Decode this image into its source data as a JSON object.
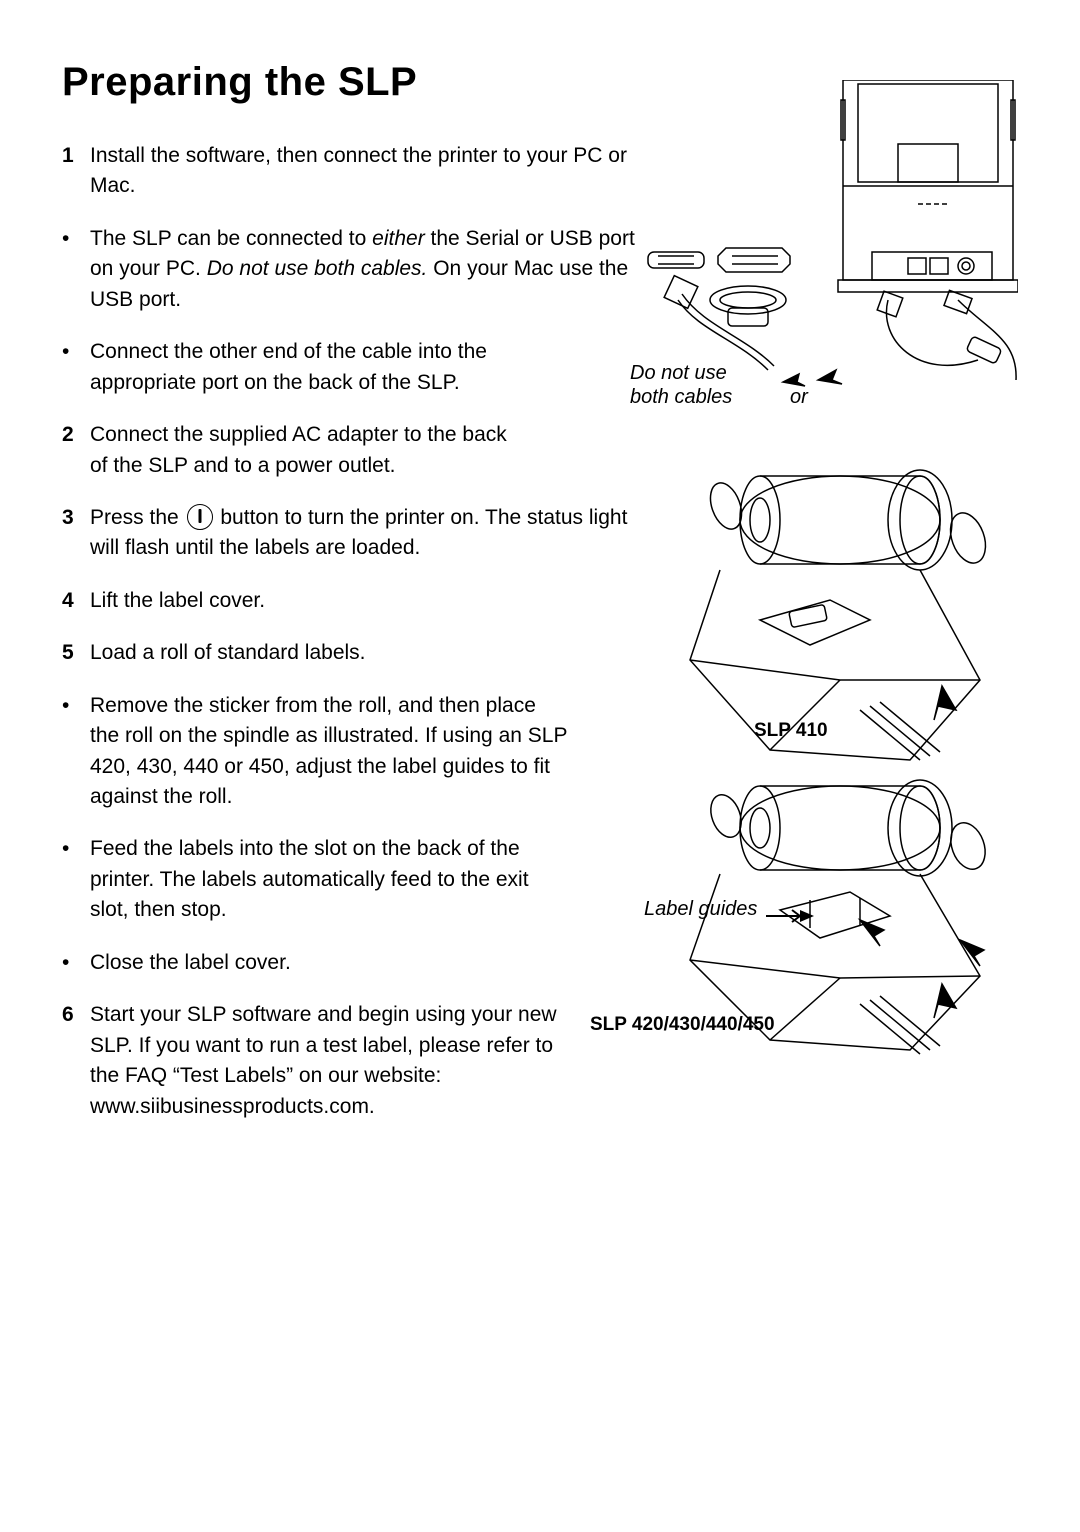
{
  "title": "Preparing the SLP",
  "items": [
    {
      "marker": "1",
      "type": "num",
      "html": "Install the software, then connect the printer to your PC or Mac."
    },
    {
      "marker": "•",
      "type": "bul",
      "html": "The SLP can be connected to <span class='em'>either</span> the Serial or USB port on your PC. <span class='em'>Do not use both cables.</span> On your Mac use the USB port."
    },
    {
      "marker": "•",
      "type": "bul",
      "html": "Connect the other end of the cable into the appropriate port on the back of the SLP.",
      "narrow": true
    },
    {
      "marker": "2",
      "type": "num",
      "html": "Connect the supplied AC adapter to the back of the SLP and to a power outlet.",
      "narrow": true
    },
    {
      "marker": "3",
      "type": "num",
      "html": "Press the <span class='power-icon' data-name='power-icon' data-interactable='false'></span> button to turn the printer on. The status light will flash until the labels are loaded."
    },
    {
      "marker": "4",
      "type": "num",
      "html": "Lift the label cover."
    },
    {
      "marker": "5",
      "type": "num",
      "html": "Load a roll of standard labels."
    },
    {
      "marker": "•",
      "type": "bul",
      "html": "Remove the sticker from the roll, and then place the roll on the spindle as illustrated. If using an SLP 420, 430, 440 or 450, adjust the label guides to fit against the roll.",
      "narrow2": true
    },
    {
      "marker": "•",
      "type": "bul",
      "html": "Feed the labels into the slot on the back of the printer. The labels automatically feed to the exit slot, then stop.",
      "narrow2": true
    },
    {
      "marker": "•",
      "type": "bul",
      "html": "Close the label cover."
    },
    {
      "marker": "6",
      "type": "num",
      "html": "Start your SLP software and begin using your new SLP. If you want to run a test label, please refer to the FAQ “Test Labels” on our website: www.siibusinessproducts.com.",
      "narrow2": true
    }
  ],
  "captions": {
    "do_not_use": "Do not use",
    "both_cables": "both cables",
    "or": "or",
    "slp410": "SLP 410",
    "label_guides": "Label guides",
    "slp420": "SLP 420/430/440/450"
  },
  "colors": {
    "text": "#000000",
    "bg": "#ffffff",
    "stroke": "#000000"
  }
}
